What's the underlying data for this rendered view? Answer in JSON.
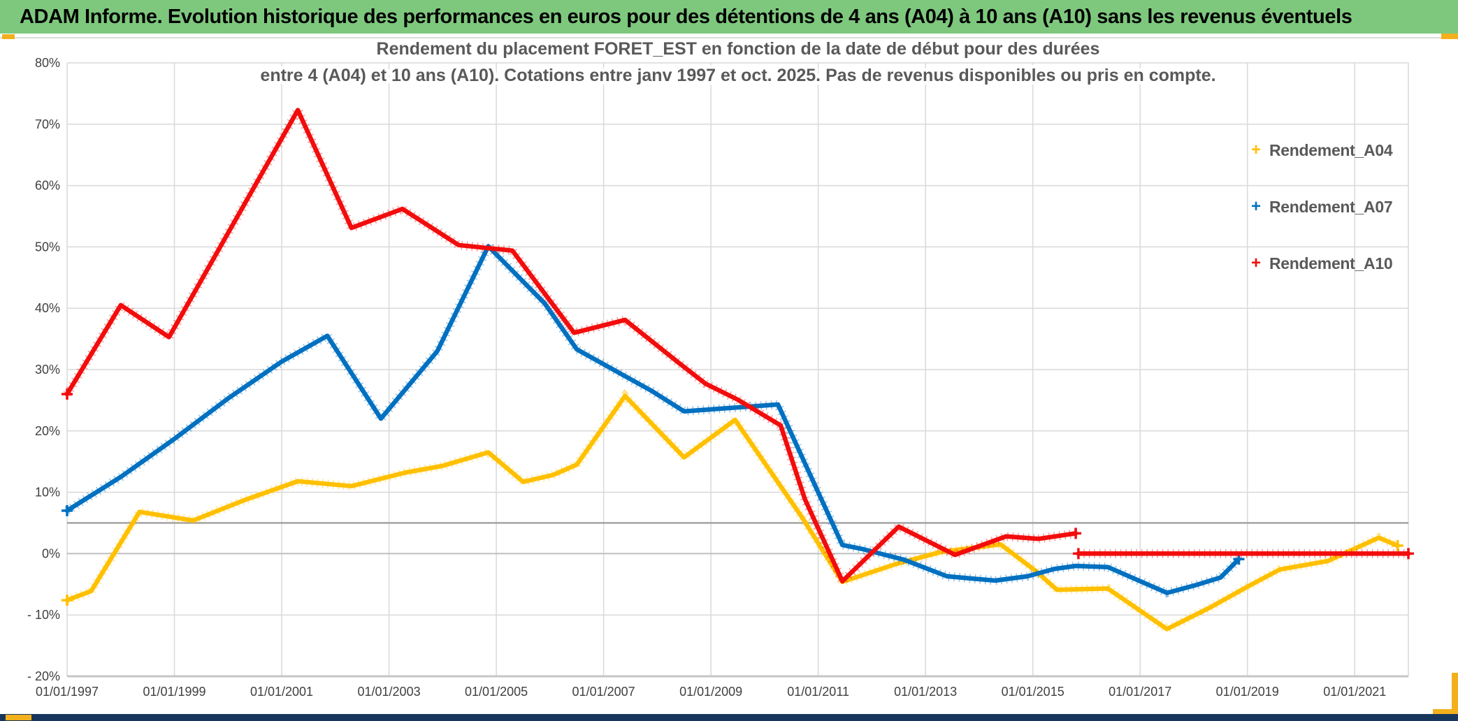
{
  "window": {
    "title": "ADAM Informe. Evolution historique des performances en euros pour des détentions de 4 ans (A04) à 10 ans (A10) sans les revenus éventuels"
  },
  "colors": {
    "titlebar_green": "#7EC87E",
    "accent_gold": "#F2B01D",
    "statusbar_navy": "#17365D",
    "gridline": "#D9D9D9",
    "gridline_zero": "#BFBFBF",
    "axis_bottom": "#C6C6C6",
    "reference_line": "#A3A3A3",
    "axis_text": "#3F3F3F",
    "title_text": "#595959"
  },
  "chart_data": {
    "type": "line",
    "title_line1": "Rendement du placement FORET_EST en fonction de la date de début pour des durées",
    "title_line2": "entre 4 (A04) et 10 ans (A10). Cotations entre janv 1997 et oct. 2025. Pas de revenus disponibles ou pris en compte.",
    "grid": true,
    "legend_position": "right",
    "x_axis": {
      "min": 1997,
      "max": 2022,
      "gridline_years": [
        1997,
        1999,
        2001,
        2003,
        2005,
        2007,
        2009,
        2011,
        2013,
        2015,
        2017,
        2019,
        2021
      ],
      "tick_labels": [
        "01/01/1997",
        "01/01/1999",
        "01/01/2001",
        "01/01/2003",
        "01/01/2005",
        "01/01/2007",
        "01/01/2009",
        "01/01/2011",
        "01/01/2013",
        "01/01/2015",
        "01/01/2017",
        "01/01/2019",
        "01/01/2021"
      ]
    },
    "y_axis": {
      "min": -20,
      "max": 80,
      "step": 10,
      "tick_labels": [
        "80%",
        "70%",
        "60%",
        "50%",
        "40%",
        "30%",
        "20%",
        "10%",
        "0%",
        "- 10%",
        "- 20%"
      ]
    },
    "reference_line": {
      "value": 5
    },
    "series": [
      {
        "name": "Rendement_A04",
        "color": "#FFC000",
        "segments": [
          [
            [
              1997.0,
              -7.6
            ],
            [
              1997.45,
              -6.1
            ],
            [
              1998.35,
              6.8
            ],
            [
              1999.35,
              5.4
            ],
            [
              2000.3,
              8.7
            ],
            [
              2001.3,
              11.8
            ],
            [
              2002.3,
              11.0
            ],
            [
              2003.3,
              13.2
            ],
            [
              2004.0,
              14.3
            ],
            [
              2004.85,
              16.5
            ],
            [
              2005.5,
              11.7
            ],
            [
              2006.05,
              12.8
            ],
            [
              2006.5,
              14.5
            ],
            [
              2007.4,
              25.7
            ],
            [
              2008.5,
              15.7
            ],
            [
              2009.45,
              21.8
            ],
            [
              2010.7,
              5.9
            ],
            [
              2011.45,
              -4.6
            ],
            [
              2012.45,
              -1.7
            ],
            [
              2013.3,
              0.3
            ],
            [
              2014.4,
              1.5
            ],
            [
              2015.05,
              -2.8
            ],
            [
              2015.45,
              -5.9
            ],
            [
              2016.4,
              -5.7
            ],
            [
              2017.5,
              -12.3
            ],
            [
              2018.3,
              -8.8
            ],
            [
              2019.0,
              -5.4
            ],
            [
              2019.6,
              -2.6
            ],
            [
              2020.5,
              -1.2
            ],
            [
              2021.45,
              2.6
            ],
            [
              2021.8,
              1.3
            ]
          ]
        ]
      },
      {
        "name": "Rendement_A07",
        "color": "#0070C0",
        "segments": [
          [
            [
              1997.0,
              7.0
            ],
            [
              1998.0,
              12.5
            ],
            [
              1999.0,
              18.7
            ],
            [
              2000.0,
              25.3
            ],
            [
              2001.0,
              31.3
            ],
            [
              2001.85,
              35.5
            ],
            [
              2002.85,
              22.0
            ],
            [
              2003.9,
              33.0
            ],
            [
              2004.85,
              50.1
            ],
            [
              2005.9,
              40.8
            ],
            [
              2006.5,
              33.3
            ],
            [
              2007.9,
              26.5
            ],
            [
              2008.5,
              23.2
            ],
            [
              2009.3,
              23.7
            ],
            [
              2010.25,
              24.3
            ],
            [
              2011.45,
              1.4
            ],
            [
              2011.8,
              0.8
            ],
            [
              2012.6,
              -1.0
            ],
            [
              2013.4,
              -3.7
            ],
            [
              2014.3,
              -4.4
            ],
            [
              2014.9,
              -3.7
            ],
            [
              2015.4,
              -2.5
            ],
            [
              2015.8,
              -2.0
            ],
            [
              2016.4,
              -2.2
            ],
            [
              2017.5,
              -6.4
            ],
            [
              2018.05,
              -5.1
            ],
            [
              2018.5,
              -3.9
            ],
            [
              2018.84,
              -0.9
            ]
          ]
        ]
      },
      {
        "name": "Rendement_A10",
        "color": "#F20D0D",
        "segments": [
          [
            [
              1997.0,
              26.0
            ],
            [
              1998.0,
              40.5
            ],
            [
              1998.9,
              35.3
            ],
            [
              2001.3,
              72.3
            ],
            [
              2002.3,
              53.1
            ],
            [
              2003.25,
              56.2
            ],
            [
              2004.3,
              50.3
            ],
            [
              2005.3,
              49.4
            ],
            [
              2006.45,
              36.0
            ],
            [
              2007.4,
              38.1
            ],
            [
              2008.4,
              31.1
            ],
            [
              2008.9,
              27.7
            ],
            [
              2009.5,
              25.1
            ],
            [
              2010.3,
              20.9
            ],
            [
              2010.75,
              8.9
            ],
            [
              2011.45,
              -4.5
            ],
            [
              2012.5,
              4.4
            ],
            [
              2013.55,
              -0.2
            ],
            [
              2014.5,
              2.8
            ],
            [
              2015.1,
              2.4
            ],
            [
              2015.8,
              3.3
            ]
          ],
          [
            [
              2015.85,
              0.0
            ],
            [
              2022.0,
              0.0
            ]
          ]
        ]
      }
    ]
  }
}
